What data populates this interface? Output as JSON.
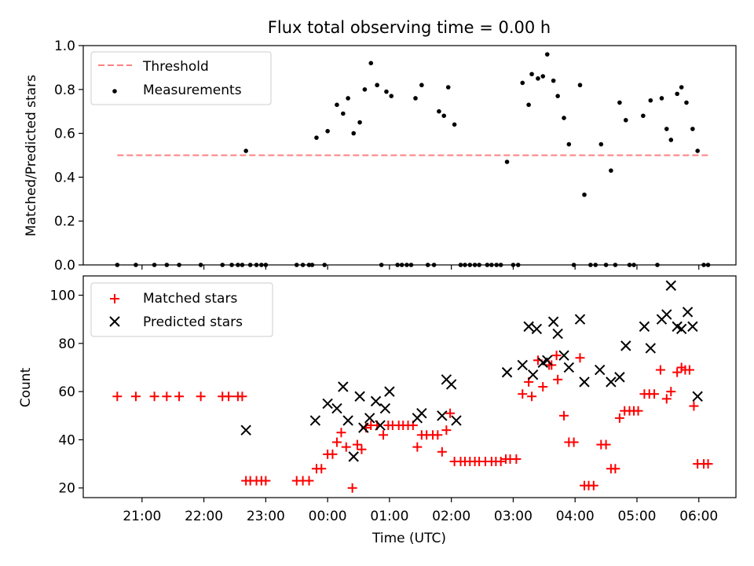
{
  "chart_data": [
    {
      "type": "scatter",
      "title": "Flux total observing time = 0.00 h",
      "xlabel": "",
      "ylabel": "Matched/Predicted stars",
      "ylim": [
        0,
        1.0
      ],
      "yticks": [
        "0.0",
        "0.2",
        "0.4",
        "0.6",
        "0.8",
        "1.0"
      ],
      "legend_position": "top-left",
      "threshold": {
        "name": "Threshold",
        "value": 0.5,
        "color": "#ff8080",
        "x_range": [
          20.6,
          30.2
        ]
      },
      "series": [
        {
          "name": "Measurements",
          "color": "#000000",
          "marker": "dot",
          "points": [
            [
              20.6,
              0
            ],
            [
              20.9,
              0
            ],
            [
              21.2,
              0
            ],
            [
              21.4,
              0
            ],
            [
              21.6,
              0
            ],
            [
              21.95,
              0
            ],
            [
              22.3,
              0
            ],
            [
              22.45,
              0
            ],
            [
              22.55,
              0
            ],
            [
              22.62,
              0
            ],
            [
              22.68,
              0.52
            ],
            [
              22.75,
              0
            ],
            [
              22.85,
              0
            ],
            [
              22.93,
              0
            ],
            [
              23.0,
              0
            ],
            [
              23.5,
              0
            ],
            [
              23.6,
              0
            ],
            [
              23.7,
              0
            ],
            [
              23.75,
              0
            ],
            [
              23.82,
              0.58
            ],
            [
              23.95,
              0
            ],
            [
              24.0,
              0.61
            ],
            [
              24.15,
              0.73
            ],
            [
              24.25,
              0.69
            ],
            [
              24.33,
              0.76
            ],
            [
              24.42,
              0.6
            ],
            [
              24.52,
              0.65
            ],
            [
              24.6,
              0.8
            ],
            [
              24.7,
              0.92
            ],
            [
              24.8,
              0.82
            ],
            [
              24.87,
              0
            ],
            [
              24.95,
              0.79
            ],
            [
              25.03,
              0.77
            ],
            [
              25.13,
              0
            ],
            [
              25.2,
              0
            ],
            [
              25.28,
              0
            ],
            [
              25.35,
              0
            ],
            [
              25.42,
              0.76
            ],
            [
              25.52,
              0.82
            ],
            [
              25.62,
              0
            ],
            [
              25.72,
              0
            ],
            [
              25.8,
              0.7
            ],
            [
              25.88,
              0.68
            ],
            [
              25.95,
              0.81
            ],
            [
              26.05,
              0.64
            ],
            [
              26.15,
              0
            ],
            [
              26.22,
              0
            ],
            [
              26.3,
              0
            ],
            [
              26.38,
              0
            ],
            [
              26.45,
              0
            ],
            [
              26.58,
              0
            ],
            [
              26.65,
              0
            ],
            [
              26.73,
              0
            ],
            [
              26.8,
              0
            ],
            [
              26.9,
              0.47
            ],
            [
              27.0,
              0
            ],
            [
              27.08,
              0
            ],
            [
              27.15,
              0.83
            ],
            [
              27.25,
              0.73
            ],
            [
              27.3,
              0.87
            ],
            [
              27.4,
              0.85
            ],
            [
              27.48,
              0.86
            ],
            [
              27.55,
              0.96
            ],
            [
              27.65,
              0.84
            ],
            [
              27.72,
              0.77
            ],
            [
              27.82,
              0.67
            ],
            [
              27.9,
              0.55
            ],
            [
              27.98,
              0
            ],
            [
              28.08,
              0.82
            ],
            [
              28.15,
              0.32
            ],
            [
              28.25,
              0
            ],
            [
              28.33,
              0
            ],
            [
              28.42,
              0.55
            ],
            [
              28.5,
              0
            ],
            [
              28.58,
              0.43
            ],
            [
              28.65,
              0
            ],
            [
              28.72,
              0.74
            ],
            [
              28.82,
              0.66
            ],
            [
              28.88,
              0
            ],
            [
              28.95,
              0
            ],
            [
              29.1,
              0.68
            ],
            [
              29.22,
              0.75
            ],
            [
              29.33,
              0
            ],
            [
              29.4,
              0.76
            ],
            [
              29.48,
              0.62
            ],
            [
              29.55,
              0.57
            ],
            [
              29.65,
              0.78
            ],
            [
              29.72,
              0.81
            ],
            [
              29.8,
              0.74
            ],
            [
              29.9,
              0.62
            ],
            [
              29.98,
              0.52
            ],
            [
              30.08,
              0
            ],
            [
              30.15,
              0
            ]
          ]
        }
      ]
    },
    {
      "type": "scatter",
      "title": "",
      "xlabel": "Time (UTC)",
      "ylabel": "Count",
      "xlim": [
        20.05,
        30.6
      ],
      "ylim": [
        16,
        108
      ],
      "yticks": [
        20,
        40,
        60,
        80,
        100
      ],
      "xticks": [
        {
          "value": 21,
          "label": "21:00"
        },
        {
          "value": 22,
          "label": "22:00"
        },
        {
          "value": 23,
          "label": "23:00"
        },
        {
          "value": 24,
          "label": "00:00"
        },
        {
          "value": 25,
          "label": "01:00"
        },
        {
          "value": 26,
          "label": "02:00"
        },
        {
          "value": 27,
          "label": "03:00"
        },
        {
          "value": 28,
          "label": "04:00"
        },
        {
          "value": 29,
          "label": "05:00"
        },
        {
          "value": 30,
          "label": "06:00"
        }
      ],
      "legend_position": "top-left",
      "series": [
        {
          "name": "Matched stars",
          "color": "#ff0000",
          "marker": "plus",
          "points": [
            [
              20.6,
              58
            ],
            [
              20.9,
              58
            ],
            [
              21.2,
              58
            ],
            [
              21.4,
              58
            ],
            [
              21.6,
              58
            ],
            [
              21.95,
              58
            ],
            [
              22.3,
              58
            ],
            [
              22.4,
              58
            ],
            [
              22.55,
              58
            ],
            [
              22.62,
              58
            ],
            [
              22.68,
              23
            ],
            [
              22.75,
              23
            ],
            [
              22.85,
              23
            ],
            [
              22.93,
              23
            ],
            [
              23.0,
              23
            ],
            [
              23.5,
              23
            ],
            [
              23.6,
              23
            ],
            [
              23.7,
              23
            ],
            [
              23.82,
              28
            ],
            [
              23.9,
              28
            ],
            [
              24.0,
              34
            ],
            [
              24.08,
              34
            ],
            [
              24.15,
              39
            ],
            [
              24.22,
              43
            ],
            [
              24.3,
              37
            ],
            [
              24.4,
              20
            ],
            [
              24.48,
              38
            ],
            [
              24.55,
              36
            ],
            [
              24.62,
              45
            ],
            [
              24.7,
              46
            ],
            [
              24.8,
              46
            ],
            [
              24.9,
              42
            ],
            [
              24.98,
              46
            ],
            [
              25.05,
              46
            ],
            [
              25.15,
              46
            ],
            [
              25.22,
              46
            ],
            [
              25.3,
              46
            ],
            [
              25.38,
              46
            ],
            [
              25.45,
              37
            ],
            [
              25.52,
              42
            ],
            [
              25.6,
              42
            ],
            [
              25.7,
              42
            ],
            [
              25.78,
              42
            ],
            [
              25.85,
              35
            ],
            [
              25.92,
              44
            ],
            [
              25.98,
              51
            ],
            [
              26.05,
              31
            ],
            [
              26.15,
              31
            ],
            [
              26.22,
              31
            ],
            [
              26.3,
              31
            ],
            [
              26.38,
              31
            ],
            [
              26.45,
              31
            ],
            [
              26.55,
              31
            ],
            [
              26.65,
              31
            ],
            [
              26.72,
              31
            ],
            [
              26.8,
              31
            ],
            [
              26.88,
              32
            ],
            [
              26.95,
              32
            ],
            [
              27.05,
              32
            ],
            [
              27.15,
              59
            ],
            [
              27.25,
              64
            ],
            [
              27.3,
              58
            ],
            [
              27.4,
              73
            ],
            [
              27.48,
              62
            ],
            [
              27.58,
              71
            ],
            [
              27.62,
              71
            ],
            [
              27.7,
              75
            ],
            [
              27.72,
              65
            ],
            [
              27.82,
              50
            ],
            [
              27.9,
              39
            ],
            [
              27.98,
              39
            ],
            [
              28.08,
              74
            ],
            [
              28.15,
              21
            ],
            [
              28.22,
              21
            ],
            [
              28.3,
              21
            ],
            [
              28.42,
              38
            ],
            [
              28.5,
              38
            ],
            [
              28.58,
              28
            ],
            [
              28.65,
              28
            ],
            [
              28.72,
              49
            ],
            [
              28.8,
              52
            ],
            [
              28.88,
              52
            ],
            [
              28.95,
              52
            ],
            [
              29.02,
              52
            ],
            [
              29.12,
              59
            ],
            [
              29.2,
              59
            ],
            [
              29.28,
              59
            ],
            [
              29.38,
              69
            ],
            [
              29.48,
              57
            ],
            [
              29.55,
              60
            ],
            [
              29.65,
              68
            ],
            [
              29.72,
              70
            ],
            [
              29.78,
              69
            ],
            [
              29.85,
              69
            ],
            [
              29.92,
              54
            ],
            [
              29.98,
              30
            ],
            [
              30.08,
              30
            ],
            [
              30.15,
              30
            ]
          ]
        },
        {
          "name": "Predicted stars",
          "color": "#000000",
          "marker": "x",
          "points": [
            [
              22.68,
              44
            ],
            [
              23.8,
              48
            ],
            [
              24.0,
              55
            ],
            [
              24.15,
              53
            ],
            [
              24.25,
              62
            ],
            [
              24.33,
              48
            ],
            [
              24.42,
              33
            ],
            [
              24.52,
              58
            ],
            [
              24.58,
              45
            ],
            [
              24.68,
              49
            ],
            [
              24.78,
              56
            ],
            [
              24.85,
              46
            ],
            [
              24.93,
              53
            ],
            [
              25.0,
              60
            ],
            [
              25.45,
              49
            ],
            [
              25.52,
              51
            ],
            [
              25.85,
              50
            ],
            [
              25.92,
              65
            ],
            [
              26.0,
              63
            ],
            [
              26.08,
              48
            ],
            [
              26.9,
              68
            ],
            [
              27.15,
              71
            ],
            [
              27.25,
              87
            ],
            [
              27.32,
              67
            ],
            [
              27.38,
              86
            ],
            [
              27.48,
              72
            ],
            [
              27.55,
              73
            ],
            [
              27.65,
              89
            ],
            [
              27.72,
              84
            ],
            [
              27.82,
              75
            ],
            [
              27.9,
              70
            ],
            [
              28.08,
              90
            ],
            [
              28.15,
              64
            ],
            [
              28.4,
              69
            ],
            [
              28.58,
              64
            ],
            [
              28.72,
              66
            ],
            [
              28.82,
              79
            ],
            [
              29.12,
              87
            ],
            [
              29.22,
              78
            ],
            [
              29.4,
              90
            ],
            [
              29.48,
              92
            ],
            [
              29.55,
              104
            ],
            [
              29.65,
              87
            ],
            [
              29.72,
              86
            ],
            [
              29.82,
              93
            ],
            [
              29.9,
              87
            ],
            [
              29.98,
              58
            ]
          ]
        }
      ]
    }
  ]
}
